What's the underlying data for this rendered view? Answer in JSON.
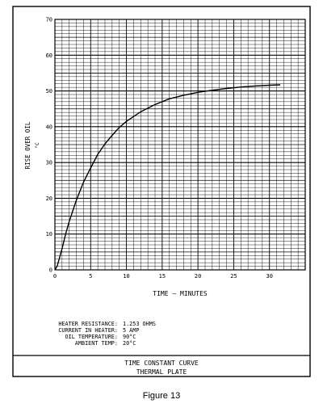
{
  "chart_data": {
    "type": "line",
    "xlabel": "TIME — MINUTES",
    "ylabel": "RISE OVER OIL",
    "ylabel_unit": "°C",
    "xlim": [
      0,
      35
    ],
    "ylim": [
      0,
      70
    ],
    "x_ticks": [
      "0",
      "5",
      "10",
      "15",
      "20",
      "25",
      "30"
    ],
    "y_ticks": [
      "0",
      "10",
      "20",
      "30",
      "40",
      "50",
      "60",
      "70"
    ],
    "grid": true,
    "series": [
      {
        "x": [
          0,
          0.3,
          0.6,
          1,
          1.5,
          2,
          3,
          4,
          5,
          6,
          7,
          8,
          9,
          10,
          12,
          14,
          16,
          18,
          20,
          22,
          24,
          26,
          28,
          30,
          31.5
        ],
        "y": [
          0,
          1,
          3,
          6,
          10,
          13.5,
          19.5,
          24.5,
          28.5,
          32.3,
          35.2,
          37.6,
          39.8,
          41.5,
          44.2,
          46.2,
          47.8,
          48.8,
          49.6,
          50.2,
          50.7,
          51.1,
          51.4,
          51.6,
          51.7
        ]
      }
    ]
  },
  "specs": [
    {
      "label": "HEATER RESISTANCE:",
      "value": "1.253 OHMS"
    },
    {
      "label": "CURRENT IN HEATER:",
      "value": "5 AMP"
    },
    {
      "label": "OIL TEMPERATURE:",
      "value": "90°C"
    },
    {
      "label": "AMBIENT TEMP:",
      "value": "20°C"
    }
  ],
  "title_block": {
    "line1": "TIME CONSTANT CURVE",
    "line2": "THERMAL PLATE"
  },
  "caption": "Figure 13"
}
